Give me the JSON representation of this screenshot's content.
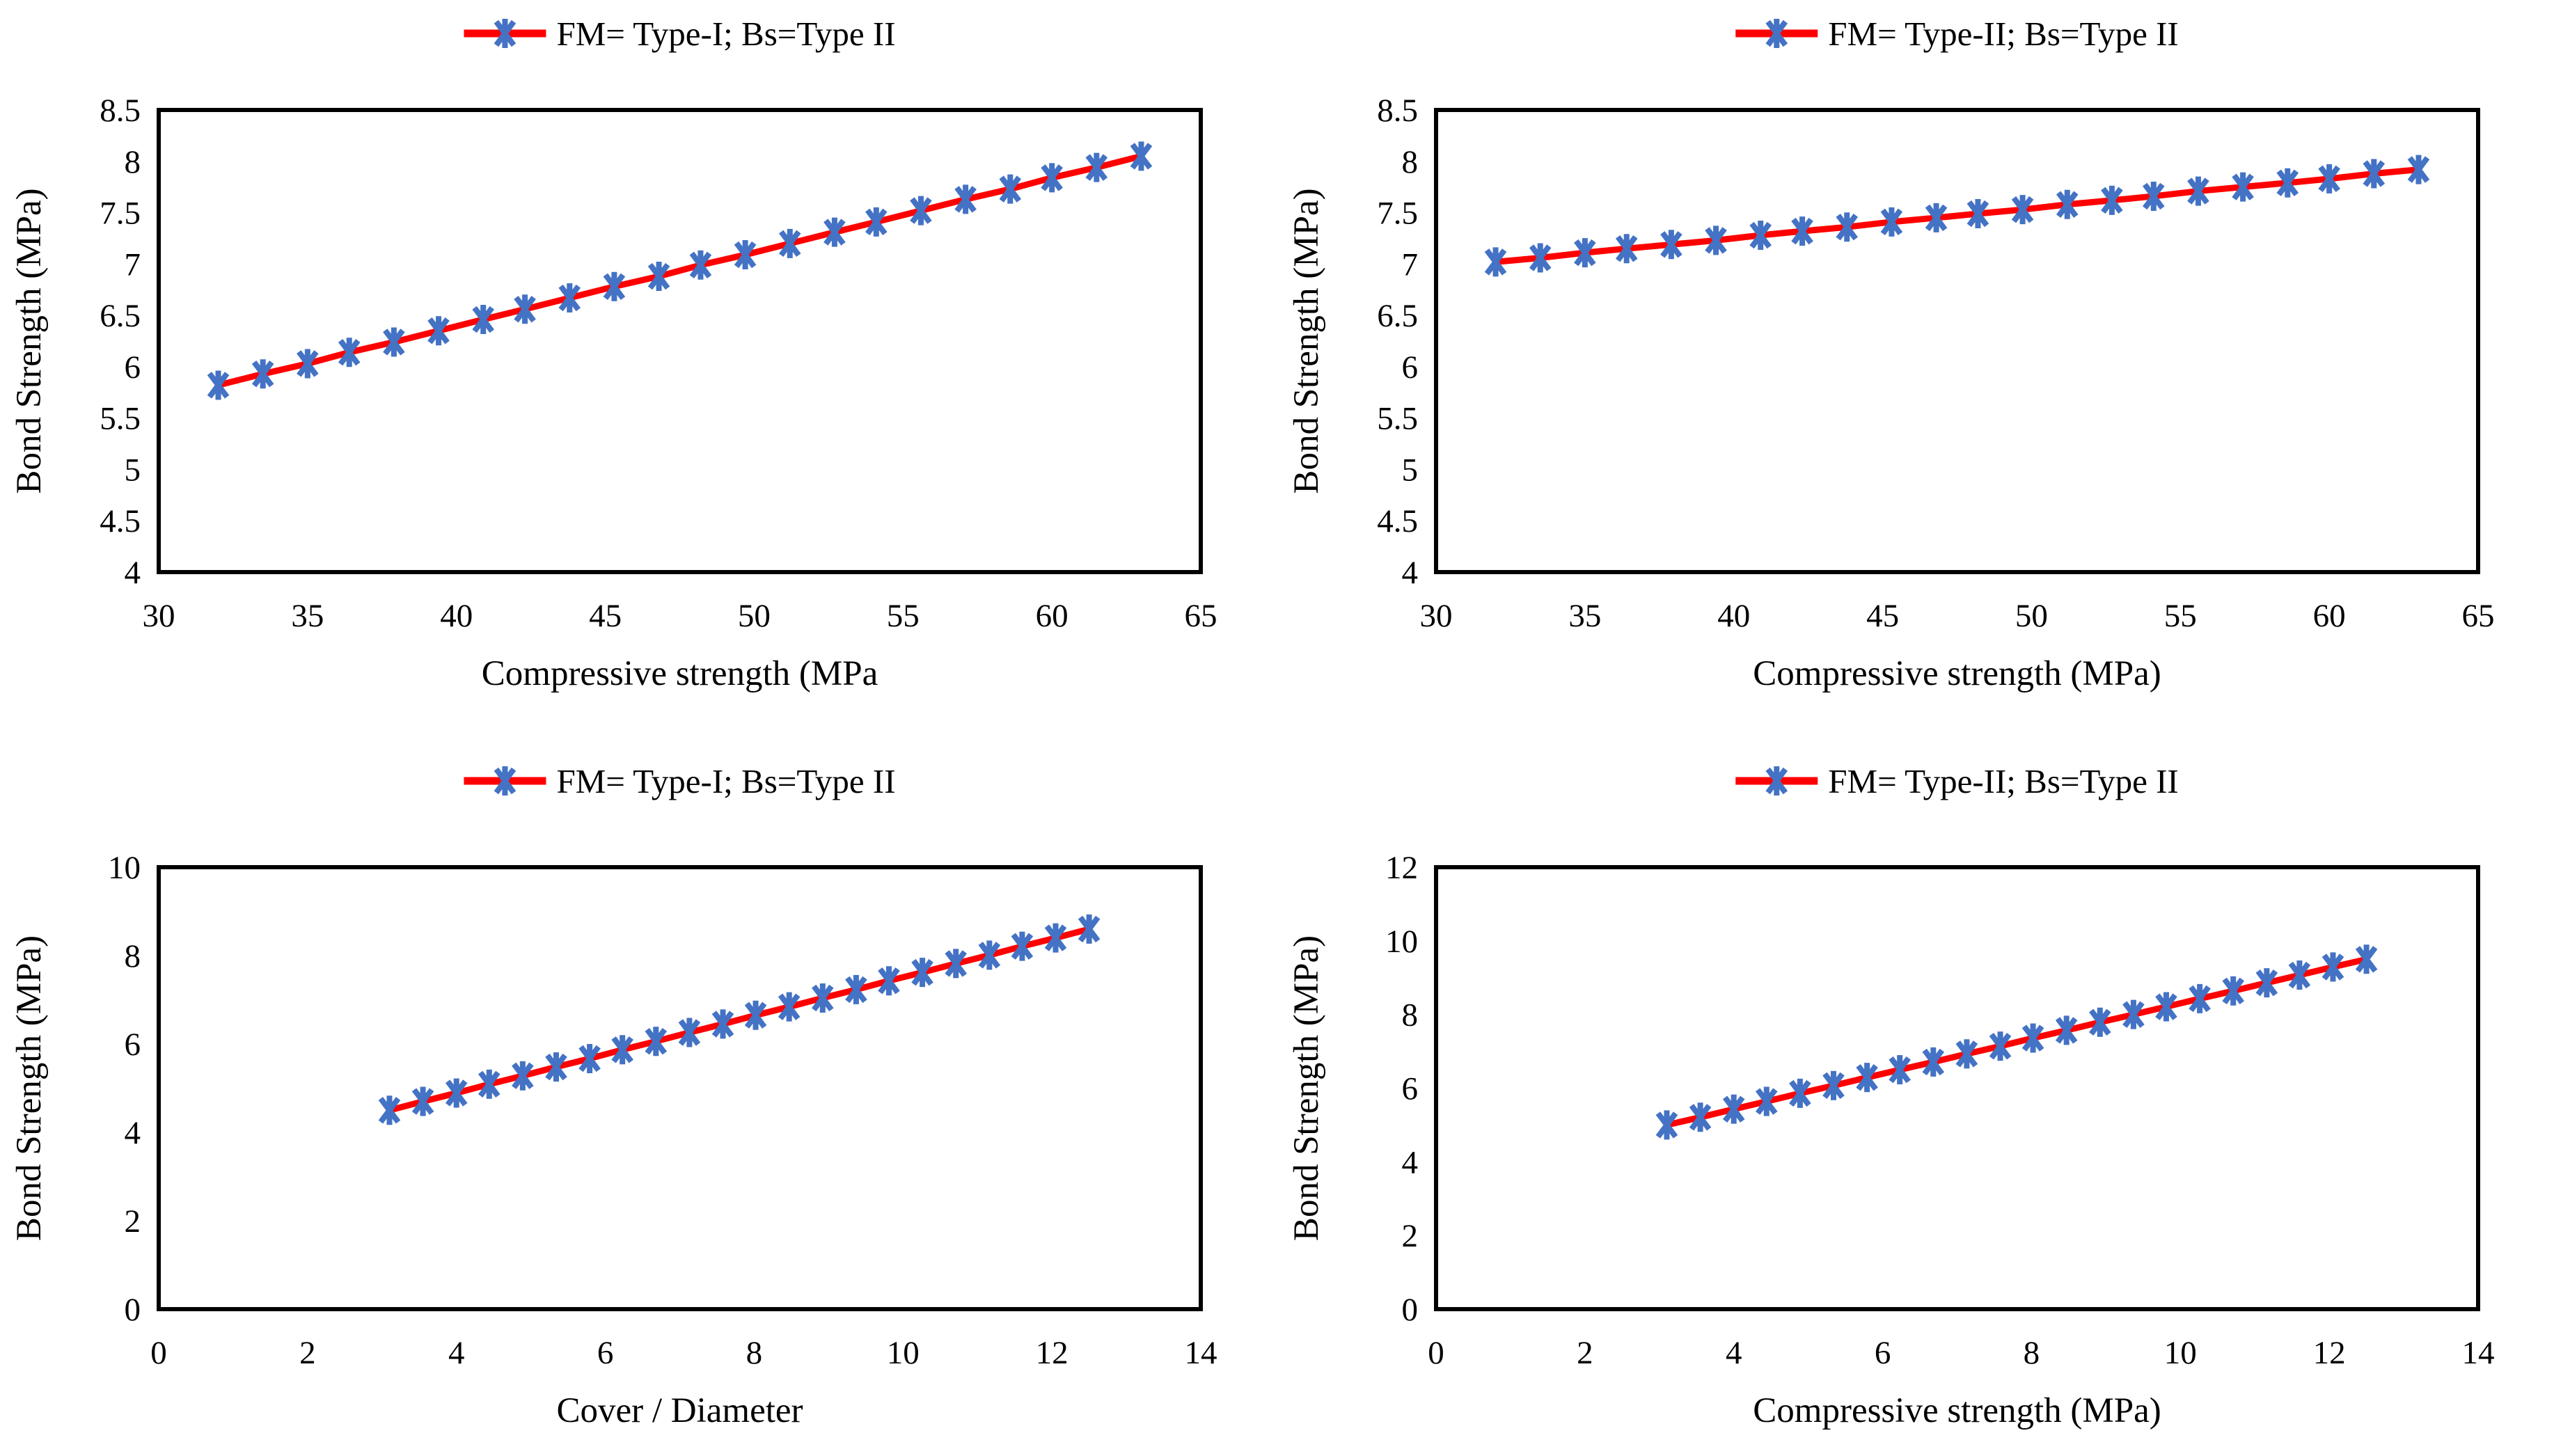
{
  "page": {
    "background": "#ffffff"
  },
  "colors": {
    "line": "#ff0000",
    "marker": "#4472c4",
    "axis": "#000000",
    "text": "#000000"
  },
  "chart_data": [
    {
      "id": "top-left",
      "type": "line",
      "legend": "FM= Type-I; Bs=Type II",
      "xlabel": "Compressive strength (MPa",
      "ylabel": "Bond Strength (MPa)",
      "xlim": [
        30,
        65
      ],
      "ylim": [
        4,
        8.5
      ],
      "xticks": [
        30,
        35,
        40,
        45,
        50,
        55,
        60,
        65
      ],
      "yticks": [
        4,
        4.5,
        5,
        5.5,
        6,
        6.5,
        7,
        7.5,
        8,
        8.5
      ],
      "grid": false,
      "legend_position": "top-center",
      "marker": "asterisk",
      "x": [
        32,
        33.5,
        35,
        36.4,
        37.9,
        39.4,
        40.9,
        42.3,
        43.8,
        45.3,
        46.8,
        48.2,
        49.7,
        51.2,
        52.7,
        54.1,
        55.6,
        57.1,
        58.6,
        60,
        61.5,
        63
      ],
      "y": [
        5.82,
        5.93,
        6.03,
        6.14,
        6.24,
        6.35,
        6.46,
        6.56,
        6.67,
        6.78,
        6.88,
        6.99,
        7.09,
        7.2,
        7.31,
        7.41,
        7.52,
        7.63,
        7.73,
        7.84,
        7.94,
        8.05
      ]
    },
    {
      "id": "top-right",
      "type": "line",
      "legend": "FM= Type-II; Bs=Type II",
      "xlabel": "Compressive strength (MPa)",
      "ylabel": "Bond Strength (MPa)",
      "xlim": [
        30,
        65
      ],
      "ylim": [
        4,
        8.5
      ],
      "xticks": [
        30,
        35,
        40,
        45,
        50,
        55,
        60,
        65
      ],
      "yticks": [
        4,
        4.5,
        5,
        5.5,
        6,
        6.5,
        7,
        7.5,
        8,
        8.5
      ],
      "grid": false,
      "legend_position": "top-center",
      "marker": "asterisk",
      "x": [
        32,
        33.5,
        35,
        36.4,
        37.9,
        39.4,
        40.9,
        42.3,
        43.8,
        45.3,
        46.8,
        48.2,
        49.7,
        51.2,
        52.7,
        54.1,
        55.6,
        57.1,
        58.6,
        60,
        61.5,
        63
      ],
      "y": [
        7.02,
        7.06,
        7.11,
        7.15,
        7.19,
        7.23,
        7.28,
        7.32,
        7.36,
        7.41,
        7.45,
        7.49,
        7.53,
        7.58,
        7.62,
        7.66,
        7.71,
        7.75,
        7.79,
        7.83,
        7.88,
        7.92
      ]
    },
    {
      "id": "bottom-left",
      "type": "line",
      "legend": "FM= Type-I; Bs=Type II",
      "xlabel": "Cover / Diameter",
      "ylabel": "Bond Strength (MPa)",
      "xlim": [
        0,
        14
      ],
      "ylim": [
        0,
        10
      ],
      "xticks": [
        0,
        2,
        4,
        6,
        8,
        10,
        12,
        14
      ],
      "yticks": [
        0,
        2,
        4,
        6,
        8,
        10
      ],
      "grid": false,
      "legend_position": "top-center",
      "marker": "asterisk",
      "x": [
        3.1,
        3.55,
        4,
        4.44,
        4.89,
        5.34,
        5.79,
        6.23,
        6.68,
        7.13,
        7.58,
        8.02,
        8.47,
        8.92,
        9.37,
        9.81,
        10.26,
        10.71,
        11.16,
        11.6,
        12.05,
        12.5
      ],
      "y": [
        4.5,
        4.7,
        4.89,
        5.09,
        5.28,
        5.48,
        5.67,
        5.87,
        6.06,
        6.26,
        6.45,
        6.65,
        6.84,
        7.04,
        7.23,
        7.43,
        7.62,
        7.82,
        8.01,
        8.21,
        8.4,
        8.6
      ]
    },
    {
      "id": "bottom-right",
      "type": "line",
      "legend": "FM= Type-II; Bs=Type II",
      "xlabel": "Compressive strength (MPa)",
      "ylabel": "Bond Strength (MPa)",
      "xlim": [
        0,
        14
      ],
      "ylim": [
        0,
        12
      ],
      "xticks": [
        0,
        2,
        4,
        6,
        8,
        10,
        12,
        14
      ],
      "yticks": [
        0,
        2,
        4,
        6,
        8,
        10,
        12
      ],
      "grid": false,
      "legend_position": "top-center",
      "marker": "asterisk",
      "x": [
        3.1,
        3.55,
        4,
        4.44,
        4.89,
        5.34,
        5.79,
        6.23,
        6.68,
        7.13,
        7.58,
        8.02,
        8.47,
        8.92,
        9.37,
        9.81,
        10.26,
        10.71,
        11.16,
        11.6,
        12.05,
        12.5
      ],
      "y": [
        5,
        5.21,
        5.43,
        5.64,
        5.86,
        6.07,
        6.29,
        6.5,
        6.71,
        6.93,
        7.14,
        7.36,
        7.57,
        7.79,
        8,
        8.21,
        8.43,
        8.64,
        8.86,
        9.07,
        9.29,
        9.5
      ]
    }
  ]
}
